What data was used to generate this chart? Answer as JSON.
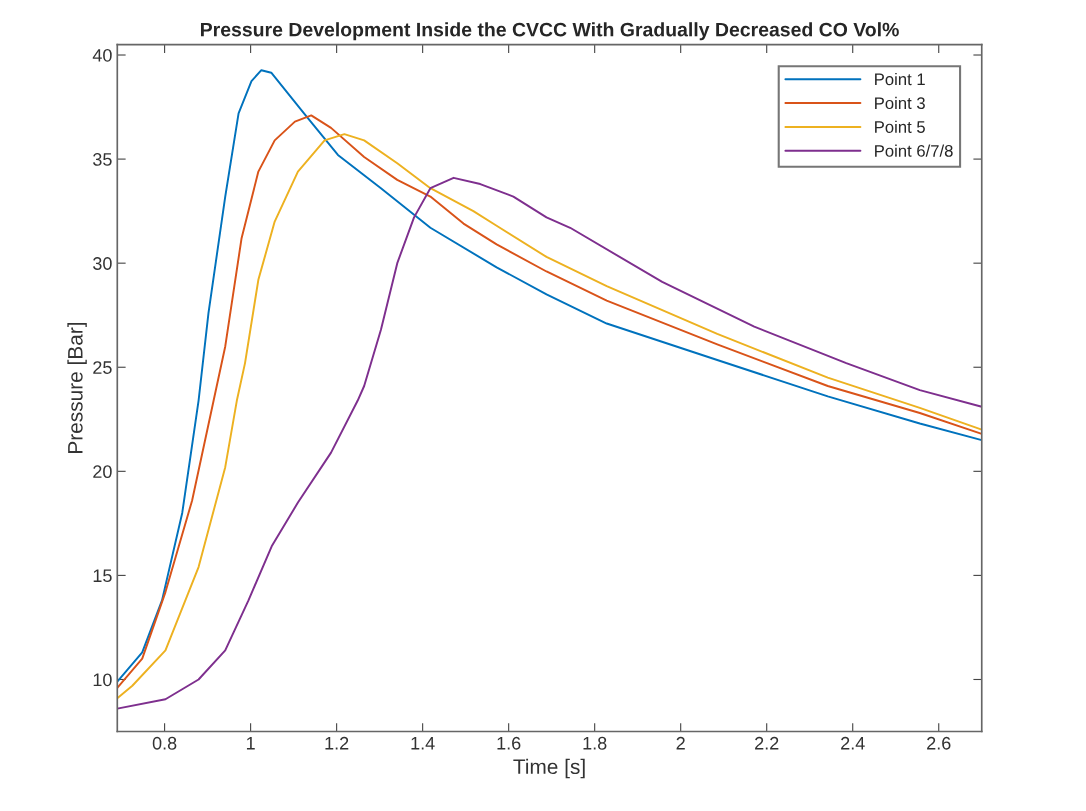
{
  "chart_data": {
    "type": "line",
    "title": "Pressure Development Inside the CVCC With Gradually Decreased CO Vol%",
    "xlabel": "Time [s]",
    "ylabel": "Pressure [Bar]",
    "xlim": [
      0.69,
      2.7
    ],
    "ylim": [
      7.5,
      40.5
    ],
    "xticks": [
      0.8,
      1,
      1.2,
      1.4,
      1.6,
      1.8,
      2,
      2.2,
      2.4,
      2.6
    ],
    "yticks": [
      10,
      15,
      20,
      25,
      30,
      35,
      40
    ],
    "grid": false,
    "legend": "top right",
    "marker": "none",
    "line_style": "solid",
    "series": [
      {
        "name": "Point 1",
        "color": "#0072bd",
        "x": [
          0.69,
          0.748,
          0.794,
          0.841,
          0.879,
          0.902,
          0.941,
          0.972,
          1.002,
          1.025,
          1.048,
          1.126,
          1.203,
          1.303,
          1.418,
          1.572,
          1.688,
          1.828,
          2.085,
          2.342,
          2.556,
          2.7
        ],
        "values": [
          9.9,
          11.3,
          13.8,
          18.0,
          23.4,
          27.6,
          33.2,
          37.2,
          38.75,
          39.27,
          39.15,
          37.15,
          35.2,
          33.6,
          31.7,
          29.8,
          28.5,
          27.1,
          25.35,
          23.6,
          22.3,
          21.5
        ]
      },
      {
        "name": "Point 3",
        "color": "#d95319",
        "x": [
          0.69,
          0.748,
          0.802,
          0.864,
          0.914,
          0.941,
          0.979,
          1.018,
          1.056,
          1.103,
          1.141,
          1.187,
          1.264,
          1.341,
          1.418,
          1.495,
          1.572,
          1.688,
          1.828,
          2.085,
          2.342,
          2.556,
          2.7
        ],
        "values": [
          9.6,
          11.0,
          14.2,
          18.6,
          23.4,
          26.0,
          31.2,
          34.4,
          35.9,
          36.8,
          37.1,
          36.5,
          35.1,
          34.0,
          33.2,
          31.9,
          30.9,
          29.6,
          28.2,
          26.1,
          24.1,
          22.8,
          21.8
        ]
      },
      {
        "name": "Point 5",
        "color": "#edb120",
        "x": [
          0.69,
          0.725,
          0.802,
          0.879,
          0.941,
          0.968,
          0.987,
          1.018,
          1.056,
          1.11,
          1.172,
          1.218,
          1.264,
          1.341,
          1.418,
          1.518,
          1.572,
          1.688,
          1.828,
          2.085,
          2.342,
          2.556,
          2.7
        ],
        "values": [
          9.1,
          9.7,
          11.4,
          15.4,
          20.2,
          23.4,
          25.2,
          29.2,
          32.0,
          34.4,
          35.9,
          36.2,
          35.9,
          34.8,
          33.6,
          32.5,
          31.8,
          30.3,
          28.9,
          26.6,
          24.5,
          23.05,
          22.0
        ]
      },
      {
        "name": "Point 6/7/8",
        "color": "#7e2f8e",
        "x": [
          0.69,
          0.802,
          0.879,
          0.941,
          0.995,
          1.049,
          1.11,
          1.187,
          1.249,
          1.264,
          1.303,
          1.341,
          1.38,
          1.418,
          1.472,
          1.534,
          1.611,
          1.688,
          1.743,
          1.957,
          2.171,
          2.385,
          2.556,
          2.7
        ],
        "values": [
          8.6,
          9.05,
          10.0,
          11.4,
          13.8,
          16.4,
          18.5,
          20.9,
          23.4,
          24.1,
          26.8,
          30.0,
          32.2,
          33.6,
          34.1,
          33.8,
          33.2,
          32.2,
          31.7,
          29.1,
          26.95,
          25.2,
          23.9,
          23.1
        ]
      }
    ]
  }
}
